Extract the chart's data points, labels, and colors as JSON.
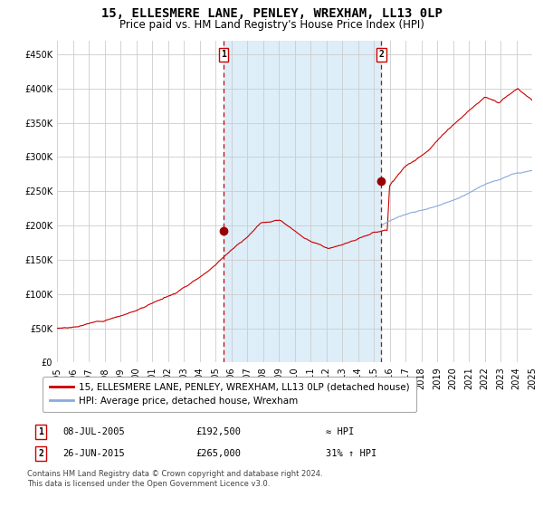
{
  "title": "15, ELLESMERE LANE, PENLEY, WREXHAM, LL13 0LP",
  "subtitle": "Price paid vs. HM Land Registry's House Price Index (HPI)",
  "legend_line1": "15, ELLESMERE LANE, PENLEY, WREXHAM, LL13 0LP (detached house)",
  "legend_line2": "HPI: Average price, detached house, Wrexham",
  "annotation1_date": "08-JUL-2005",
  "annotation1_price": "£192,500",
  "annotation1_hpi": "≈ HPI",
  "annotation2_date": "26-JUN-2015",
  "annotation2_price": "£265,000",
  "annotation2_hpi": "31% ↑ HPI",
  "footnote": "Contains HM Land Registry data © Crown copyright and database right 2024.\nThis data is licensed under the Open Government Licence v3.0.",
  "hpi_line_color": "#88aadd",
  "price_line_color": "#cc0000",
  "dot_color": "#990000",
  "vline_color": "#cc0000",
  "shade_color": "#ddeef8",
  "grid_color": "#cccccc",
  "background_color": "#ffffff",
  "ylim": [
    0,
    470000
  ],
  "yticks": [
    0,
    50000,
    100000,
    150000,
    200000,
    250000,
    300000,
    350000,
    400000,
    450000
  ],
  "ytick_labels": [
    "£0",
    "£50K",
    "£100K",
    "£150K",
    "£200K",
    "£250K",
    "£300K",
    "£350K",
    "£400K",
    "£450K"
  ],
  "year_start": 1995,
  "year_end": 2025,
  "event1_year": 2005.52,
  "event1_value": 192500,
  "event2_year": 2015.48,
  "event2_value": 265000
}
